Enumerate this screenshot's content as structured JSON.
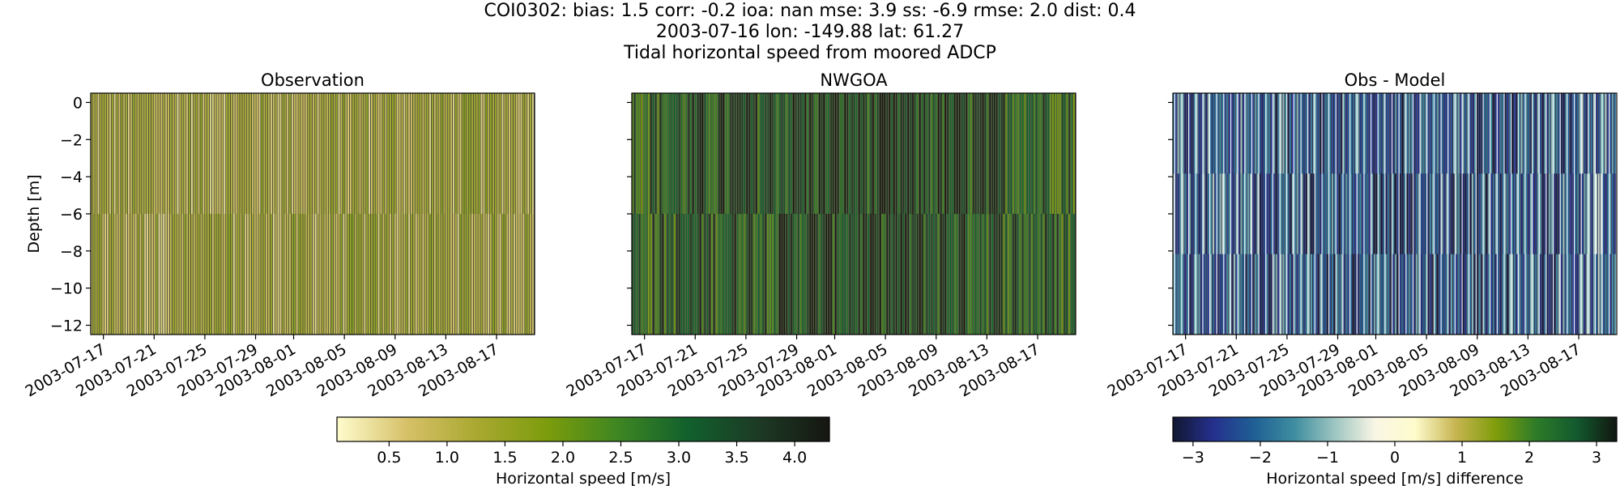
{
  "header": {
    "line1": "COI0302: bias: 1.5  corr: -0.2  ioa: nan  mse: 3.9  ss: -6.9  rmse: 2.0  dist: 0.4",
    "line2": "2003-07-16 lon: -149.88 lat: 61.27",
    "line3": "Tidal horizontal speed from moored ADCP"
  },
  "chart_data": [
    {
      "type": "heatmap",
      "title": "Observation",
      "ylabel": "Depth [m]",
      "xlabel": "",
      "x_range": [
        "2003-07-16",
        "2003-08-20"
      ],
      "ylim": [
        -12.5,
        0.5
      ],
      "x_ticks": [
        "2003-07-17",
        "2003-07-21",
        "2003-07-25",
        "2003-07-29",
        "2003-08-01",
        "2003-08-05",
        "2003-08-09",
        "2003-08-13",
        "2003-08-17"
      ],
      "y_ticks": [
        0,
        -2,
        -4,
        -6,
        -8,
        -10,
        -12
      ],
      "colormap": "speed",
      "value_description": "vertical stripes of horizontal speed, mostly 0.5–1.5 m/s",
      "typical_range": [
        0.3,
        1.6
      ]
    },
    {
      "type": "heatmap",
      "title": "NWGOA",
      "xlabel": "",
      "x_range": [
        "2003-07-16",
        "2003-08-20"
      ],
      "ylim": [
        -12.5,
        0.5
      ],
      "x_ticks": [
        "2003-07-17",
        "2003-07-21",
        "2003-07-25",
        "2003-07-29",
        "2003-08-01",
        "2003-08-05",
        "2003-08-09",
        "2003-08-13",
        "2003-08-17"
      ],
      "colormap": "speed",
      "value_description": "vertical stripes, higher speeds 2.5–4 m/s, darkest mid-period",
      "typical_range": [
        1.8,
        4.0
      ]
    },
    {
      "type": "heatmap",
      "title": "Obs - Model",
      "xlabel": "",
      "x_range": [
        "2003-07-16",
        "2003-08-20"
      ],
      "ylim": [
        -12.5,
        0.5
      ],
      "x_ticks": [
        "2003-07-17",
        "2003-07-21",
        "2003-07-25",
        "2003-07-29",
        "2003-08-01",
        "2003-08-05",
        "2003-08-09",
        "2003-08-13",
        "2003-08-17"
      ],
      "colormap": "diverging delta",
      "value_description": "mostly negative differences, about -1 to -3 m/s",
      "typical_range": [
        -3.0,
        -0.5
      ]
    }
  ],
  "colorbars": [
    {
      "label": "Horizontal speed [m/s]",
      "range": [
        0.05,
        4.3
      ],
      "ticks": [
        "0.5",
        "1.0",
        "1.5",
        "2.0",
        "2.5",
        "3.0",
        "3.5",
        "4.0"
      ],
      "tick_values": [
        0.5,
        1.0,
        1.5,
        2.0,
        2.5,
        3.0,
        3.5,
        4.0
      ],
      "colors": [
        "#fefccd",
        "#d6c068",
        "#a9a830",
        "#7b9c0c",
        "#3e8622",
        "#11602d",
        "#1d3a25",
        "#151610"
      ]
    },
    {
      "label": "Horizontal speed [m/s] difference",
      "range": [
        -3.3,
        3.3
      ],
      "ticks": [
        "−3",
        "−2",
        "−1",
        "0",
        "1",
        "2",
        "3"
      ],
      "tick_values": [
        -3,
        -2,
        -1,
        0,
        1,
        2,
        3
      ],
      "colors": [
        "#111731",
        "#25308d",
        "#1f5f94",
        "#3e8da0",
        "#9dc5c1",
        "#f9f6e5",
        "#fefccd",
        "#c8b552",
        "#7f9d0b",
        "#2d7b28",
        "#135a2e",
        "#111610"
      ]
    }
  ]
}
